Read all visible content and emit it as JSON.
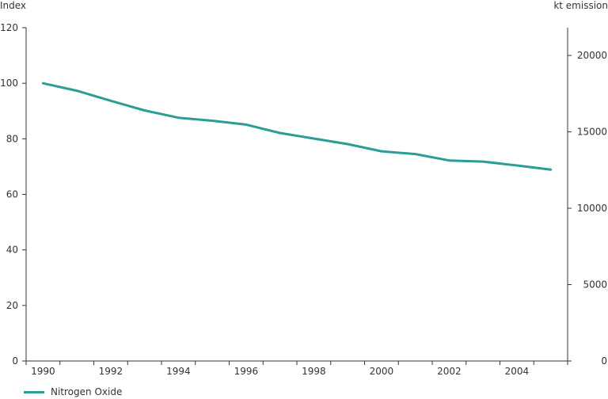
{
  "chart_data": {
    "type": "line",
    "title": "",
    "xlabel": "",
    "ylabel": "Index",
    "ylabel_right": "kt emission",
    "xlim": [
      1989.5,
      2005.5
    ],
    "ylim": [
      0,
      120
    ],
    "ylim_right": [
      0,
      21818
    ],
    "x_ticks": [
      1990,
      1992,
      1994,
      1996,
      1998,
      2000,
      2002,
      2004
    ],
    "y_ticks": [
      0,
      20,
      40,
      60,
      80,
      100,
      120
    ],
    "y_ticks_right": [
      0,
      5000,
      10000,
      15000,
      20000
    ],
    "grid": false,
    "legend": "bottom-left",
    "x": [
      1990,
      1991,
      1992,
      1993,
      1994,
      1995,
      1996,
      1997,
      1998,
      1999,
      2000,
      2001,
      2002,
      2003,
      2004,
      2005
    ],
    "series": [
      {
        "name": "Nitrogen Oxide",
        "color": "#2a9d97",
        "values": [
          100,
          97.3,
          93.7,
          90.2,
          87.6,
          86.5,
          85.1,
          82.1,
          80.1,
          78.1,
          75.5,
          74.5,
          72.2,
          71.8,
          70.4,
          68.9
        ]
      }
    ]
  }
}
